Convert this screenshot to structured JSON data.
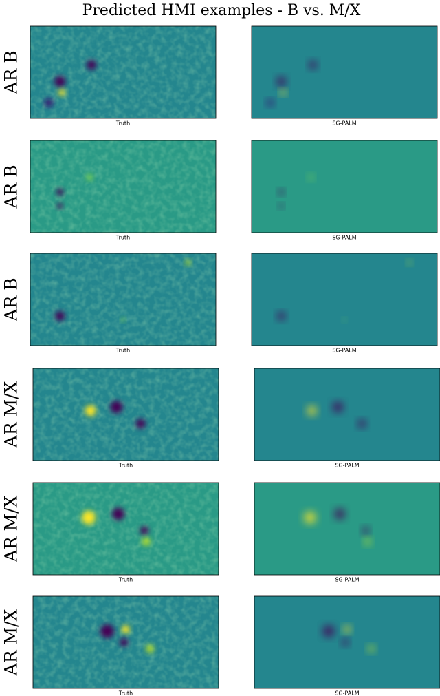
{
  "header": {
    "title": "Predicted HMI examples - B vs. M/X"
  },
  "rows": [
    {
      "label": "AR B",
      "panels": [
        {
          "caption": "Truth"
        },
        {
          "caption": "SG-PALM"
        }
      ]
    },
    {
      "label": "AR B",
      "panels": [
        {
          "caption": "Truth"
        },
        {
          "caption": "SG-PALM"
        }
      ]
    },
    {
      "label": "AR B",
      "panels": [
        {
          "caption": "Truth"
        },
        {
          "caption": "SG-PALM"
        }
      ]
    },
    {
      "label": "AR M/X",
      "panels": [
        {
          "caption": "Truth"
        },
        {
          "caption": "SG-PALM"
        }
      ]
    },
    {
      "label": "AR M/X",
      "panels": [
        {
          "caption": "Truth"
        },
        {
          "caption": "SG-PALM"
        }
      ]
    },
    {
      "label": "AR M/X",
      "panels": [
        {
          "caption": "Truth"
        },
        {
          "caption": "SG-PALM"
        }
      ]
    }
  ]
}
